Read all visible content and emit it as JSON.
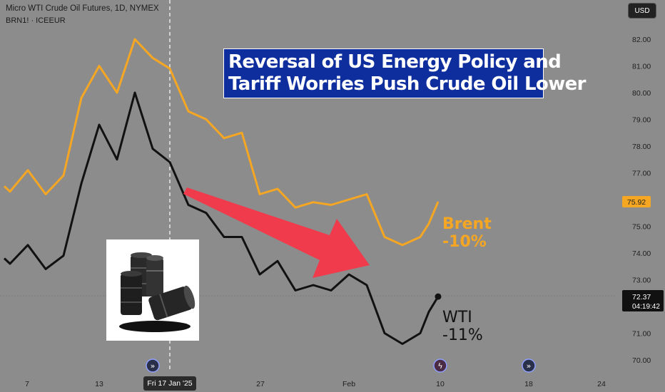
{
  "header": {
    "title": "Micro WTI Crude Oil Futures, 1D, NYMEX",
    "subtitle": "BRN1! · ICEEUR"
  },
  "currency_button": "USD",
  "banner": {
    "line1": "Reversal of US Energy Policy and",
    "line2": "Tariff Worries Push Crude Oil Lower"
  },
  "labels": {
    "brent_name": "Brent",
    "brent_change": "-10%",
    "wti_name": "WTI",
    "wti_change": "-11%"
  },
  "crosshair_date": "Fri 17 Jan '25",
  "price_badges": {
    "brent_last": "75.92",
    "wti_last": "72.37",
    "countdown": "04:19:42"
  },
  "colors": {
    "background": "#8c8c8c",
    "brent": "#f5a623",
    "wti": "#111111",
    "arrow": "#f03b4c",
    "banner": "#0e2e9e"
  },
  "chart_data": {
    "type": "line",
    "x": [
      "Jan 3",
      "Jan 6",
      "Jan 7",
      "Jan 8",
      "Jan 9",
      "Jan 10",
      "Jan 13",
      "Jan 14",
      "Jan 15",
      "Jan 16",
      "Jan 17",
      "Jan 20",
      "Jan 21",
      "Jan 22",
      "Jan 23",
      "Jan 24",
      "Jan 27",
      "Jan 28",
      "Jan 29",
      "Jan 30",
      "Jan 31",
      "Feb 3",
      "Feb 4",
      "Feb 5",
      "Feb 6",
      "Feb 7",
      "Feb 10"
    ],
    "series": [
      {
        "name": "Brent",
        "values": [
          76.5,
          76.3,
          77.1,
          76.2,
          76.9,
          79.8,
          81.0,
          80.0,
          82.0,
          81.3,
          80.9,
          79.3,
          79.0,
          78.3,
          78.5,
          76.2,
          76.4,
          75.7,
          75.9,
          75.8,
          76.0,
          76.2,
          74.6,
          74.3,
          74.6,
          75.1,
          75.92
        ]
      },
      {
        "name": "WTI",
        "values": [
          73.8,
          73.6,
          74.3,
          73.4,
          73.9,
          76.6,
          78.8,
          77.5,
          80.0,
          77.9,
          77.4,
          75.8,
          75.5,
          74.6,
          74.6,
          73.2,
          73.7,
          72.6,
          72.8,
          72.6,
          73.2,
          72.8,
          71.0,
          70.6,
          71.0,
          71.8,
          72.37
        ]
      }
    ],
    "y_ticks": [
      "82.00",
      "81.00",
      "80.00",
      "79.00",
      "78.00",
      "77.00",
      "76.00",
      "75.00",
      "74.00",
      "73.00",
      "72.00",
      "71.00",
      "70.00"
    ],
    "x_ticks": [
      "7",
      "13",
      "Fri 17 Jan '25",
      "27",
      "Feb",
      "10",
      "18",
      "24"
    ],
    "ylim": [
      69.7,
      83.2
    ],
    "grid": false,
    "crosshair": {
      "date": "Jan 17",
      "price": 72.37
    },
    "event_icons": [
      "Jan 16",
      "Feb 10",
      "Feb 18"
    ]
  }
}
